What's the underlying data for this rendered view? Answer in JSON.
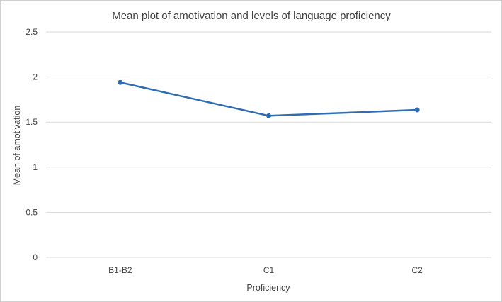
{
  "chart_data": {
    "type": "line",
    "title": "Mean plot of amotivation and levels of language proficiency",
    "xlabel": "Proficiency",
    "ylabel": "Mean of amotivation",
    "categories": [
      "B1-B2",
      "C1",
      "C2"
    ],
    "series": [
      {
        "values": [
          1.94,
          1.57,
          1.635
        ]
      }
    ],
    "ylim": [
      0,
      2.5
    ],
    "yticks": [
      "0",
      "0.5",
      "1",
      "1.5",
      "2",
      "2.5"
    ],
    "grid": true,
    "legend": "none",
    "colors": {
      "series": "#2e6db4",
      "grid": "#d9d9d9",
      "text": "#404040"
    }
  }
}
